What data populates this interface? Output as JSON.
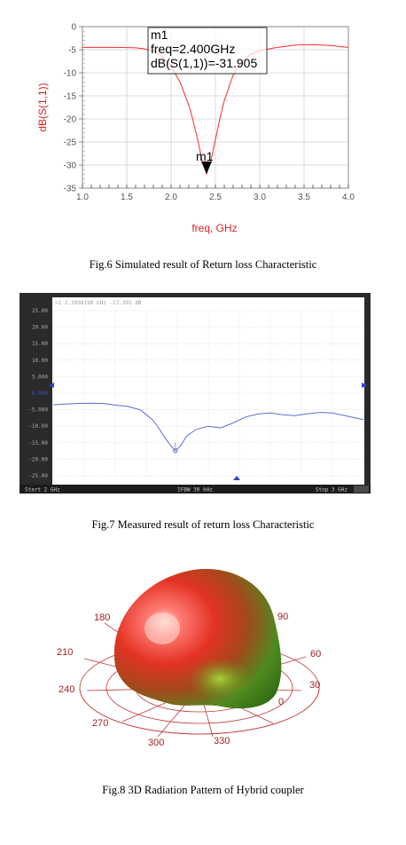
{
  "fig6": {
    "caption": "Fig.6 Simulated result of  Return loss Characteristic",
    "marker": {
      "name": "m1",
      "freq_text": "freq=2.400GHz",
      "value_text": "dB(S(1,1))=-31.905"
    },
    "colors": {
      "curve": "#ff2a2a",
      "axis_label": "#dd2222"
    },
    "chart_data": {
      "type": "line",
      "xlabel": "freq, GHz",
      "ylabel": "dB(S(1,1))",
      "xlim": [
        1.0,
        4.0
      ],
      "ylim": [
        -35,
        0
      ],
      "x_ticks": [
        "1.0",
        "1.5",
        "2.0",
        "2.5",
        "3.0",
        "3.5",
        "4.0"
      ],
      "y_ticks": [
        "0",
        "-5",
        "-10",
        "-15",
        "-20",
        "-25",
        "-30",
        "-35"
      ],
      "series": [
        {
          "x": [
            1.0,
            1.2,
            1.4,
            1.6,
            1.7,
            1.8,
            1.9,
            2.0,
            2.1,
            2.2,
            2.25,
            2.3,
            2.35,
            2.4,
            2.45,
            2.5,
            2.55,
            2.6,
            2.7,
            2.8,
            2.9,
            3.0,
            3.2,
            3.4,
            3.6,
            3.8,
            4.0
          ],
          "y": [
            -4.5,
            -4.5,
            -4.5,
            -4.6,
            -4.8,
            -5.3,
            -6.5,
            -8.6,
            -12,
            -17,
            -20.5,
            -24.5,
            -29,
            -31.9,
            -29,
            -24.5,
            -20,
            -16,
            -10.5,
            -7.5,
            -6,
            -5.2,
            -4.5,
            -4.0,
            -3.9,
            -4.1,
            -4.5
          ]
        }
      ],
      "marker": {
        "x": 2.4,
        "y": -31.905
      }
    }
  },
  "fig7": {
    "caption": "Fig.7  Measured result of return loss Characteristic",
    "header_text": ">1  2.3938190 GHz -17.391 dB",
    "footer": {
      "start": "Start 2 GHz",
      "ifbw": "IFBW 30 kHz",
      "stop": "Stop 3 GHz"
    },
    "marker_label": "1",
    "colors": {
      "background": "#ffffff",
      "trace": "#5c6fd0",
      "frame": "#2a2a2a",
      "grid": "#bfbfbf"
    },
    "chart_data": {
      "type": "line",
      "xlim": [
        2.0,
        3.0
      ],
      "ylim": [
        -25,
        25
      ],
      "y_ticks": [
        "25.00",
        "20.00",
        "15.00",
        "10.00",
        "5.000",
        "0.000",
        "-5.000",
        "-10.00",
        "-15.00",
        "-20.00",
        "-25.00"
      ],
      "series": [
        {
          "x": [
            2.0,
            2.04,
            2.08,
            2.12,
            2.16,
            2.2,
            2.24,
            2.28,
            2.3,
            2.32,
            2.34,
            2.36,
            2.38,
            2.3938,
            2.41,
            2.43,
            2.46,
            2.5,
            2.54,
            2.58,
            2.62,
            2.66,
            2.7,
            2.74,
            2.78,
            2.82,
            2.86,
            2.9,
            2.94,
            2.98,
            3.0
          ],
          "y": [
            -3.5,
            -3.3,
            -3.1,
            -3.0,
            -3.1,
            -3.6,
            -4.0,
            -5.0,
            -6.5,
            -8.0,
            -10.5,
            -13.5,
            -16.0,
            -17.4,
            -16.0,
            -13.0,
            -11.0,
            -10.0,
            -10.5,
            -9.0,
            -7.2,
            -6.3,
            -6.0,
            -6.5,
            -6.8,
            -6.2,
            -5.8,
            -6.0,
            -6.8,
            -7.6,
            -8.0
          ]
        }
      ],
      "marker": {
        "x": 2.3938,
        "y": -17.391
      }
    }
  },
  "fig8": {
    "caption": "Fig.8  3D Radiation Pattern of Hybrid coupler",
    "angle_labels": [
      "0",
      "30",
      "60",
      "90",
      "180",
      "210",
      "240",
      "270",
      "300",
      "330"
    ],
    "colors": {
      "labels": "#a01f1f",
      "grid": "#c03a3a"
    }
  }
}
